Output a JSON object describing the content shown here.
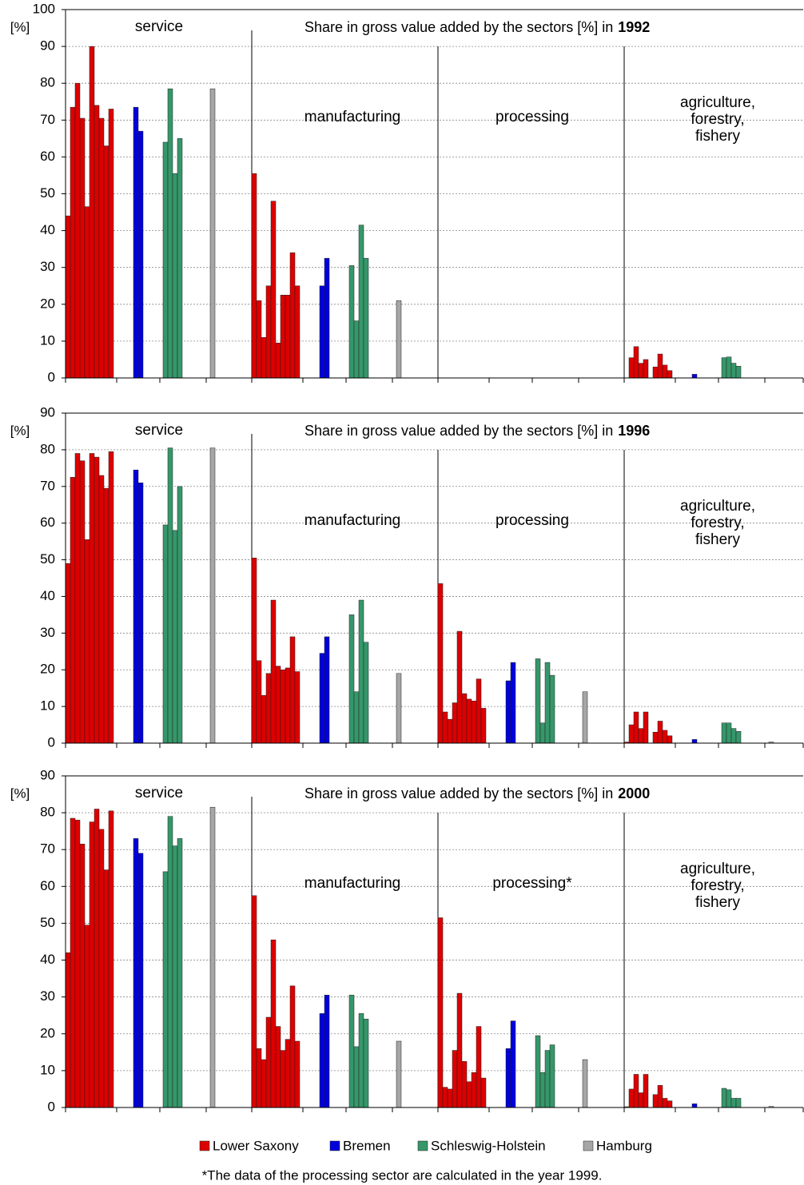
{
  "legend": [
    {
      "name": "Lower Saxony",
      "color": "#dd0000"
    },
    {
      "name": "Bremen",
      "color": "#0000dd"
    },
    {
      "name": "Schleswig-Holstein",
      "color": "#35976a"
    },
    {
      "name": "Hamburg",
      "color": "#a6a6a6"
    }
  ],
  "note": "*The data of the processing sector are calculated in the year 1999.",
  "chart_data": [
    {
      "type": "bar",
      "title": "Share in gross value added by the sectors [%] in",
      "year": "1992",
      "ylabel": "[%]",
      "ylim": [
        0,
        100
      ],
      "yticks": [
        0,
        10,
        20,
        30,
        40,
        50,
        60,
        70,
        80,
        90,
        100
      ],
      "grid": true,
      "sectors": [
        {
          "label": [
            "service"
          ],
          "values": [
            [
              44,
              73.5,
              80,
              70.5,
              46.5,
              90,
              74,
              70.5,
              63,
              73
            ],
            [
              73.5,
              67
            ],
            [
              64,
              78.5,
              55.5,
              65
            ],
            [
              78.5
            ]
          ]
        },
        {
          "label": [
            "manufacturing"
          ],
          "values": [
            [
              55.5,
              21,
              11,
              25,
              48,
              9.5,
              22.5,
              22.5,
              34,
              25
            ],
            [
              25,
              32.5
            ],
            [
              30.5,
              15.5,
              41.5,
              32.5
            ],
            [
              21
            ]
          ]
        },
        {
          "label": [
            "processing"
          ],
          "values": [
            [],
            [],
            [],
            []
          ]
        },
        {
          "label": [
            "agriculture,",
            "forestry,",
            "fishery"
          ],
          "values": [
            [
              null,
              5.5,
              8.5,
              4,
              5,
              null,
              3,
              6.5,
              3.5,
              2
            ],
            [
              1
            ],
            [
              5.5,
              5.7,
              4,
              3.2
            ],
            []
          ]
        }
      ]
    },
    {
      "type": "bar",
      "title": "Share in gross value added by the sectors [%] in",
      "year": "1996",
      "ylabel": "[%]",
      "ylim": [
        0,
        90
      ],
      "yticks": [
        0,
        10,
        20,
        30,
        40,
        50,
        60,
        70,
        80,
        90
      ],
      "grid": true,
      "sectors": [
        {
          "label": [
            "service"
          ],
          "values": [
            [
              49,
              72.5,
              79,
              77,
              55.5,
              79,
              78,
              73,
              69.5,
              79.5
            ],
            [
              74.5,
              71
            ],
            [
              59.5,
              80.5,
              58,
              70
            ],
            [
              80.5
            ]
          ]
        },
        {
          "label": [
            "manufacturing"
          ],
          "values": [
            [
              50.5,
              22.5,
              13,
              19,
              39,
              21,
              20,
              20.5,
              29,
              19.5
            ],
            [
              24.5,
              29
            ],
            [
              35,
              14,
              39,
              27.5
            ],
            [
              19
            ]
          ]
        },
        {
          "label": [
            "processing"
          ],
          "values": [
            [
              43.5,
              8.5,
              6.5,
              11,
              30.5,
              13.5,
              12,
              11.5,
              17.5,
              9.5
            ],
            [
              17,
              22
            ],
            [
              23,
              5.5,
              22,
              18.5
            ],
            [
              14
            ]
          ]
        },
        {
          "label": [
            "agriculture,",
            "forestry,",
            "fishery"
          ],
          "values": [
            [
              0.3,
              5,
              8.5,
              4,
              8.5,
              null,
              3,
              6,
              3.5,
              2
            ],
            [
              1
            ],
            [
              5.5,
              5.5,
              4,
              3.2
            ],
            [
              0.3
            ]
          ]
        }
      ]
    },
    {
      "type": "bar",
      "title": "Share in gross value added by the sectors [%] in",
      "year": "2000",
      "ylabel": "[%]",
      "ylim": [
        0,
        90
      ],
      "yticks": [
        0,
        10,
        20,
        30,
        40,
        50,
        60,
        70,
        80,
        90
      ],
      "grid": true,
      "sectors": [
        {
          "label": [
            "service"
          ],
          "values": [
            [
              42,
              78.5,
              78,
              71.5,
              49.5,
              77.5,
              81,
              75.5,
              64.5,
              80.5
            ],
            [
              73,
              69
            ],
            [
              64,
              79,
              71,
              73
            ],
            [
              81.5
            ]
          ]
        },
        {
          "label": [
            "manufacturing"
          ],
          "values": [
            [
              57.5,
              16,
              13,
              24.5,
              45.5,
              22,
              15.5,
              18.5,
              33,
              18
            ],
            [
              25.5,
              30.5
            ],
            [
              30.5,
              16.5,
              25.5,
              24
            ],
            [
              18
            ]
          ]
        },
        {
          "label": [
            "processing*"
          ],
          "values": [
            [
              51.5,
              5.5,
              5,
              15.5,
              31,
              12.5,
              7,
              9.5,
              22,
              8
            ],
            [
              16,
              23.5
            ],
            [
              19.5,
              9.5,
              15.5,
              17
            ],
            [
              13
            ]
          ]
        },
        {
          "label": [
            "agriculture,",
            "forestry,",
            "fishery"
          ],
          "values": [
            [
              0.2,
              5,
              9,
              4,
              9,
              null,
              3.5,
              6,
              2.5,
              1.8
            ],
            [
              1
            ],
            [
              5.2,
              4.8,
              2.5,
              2.5
            ],
            [
              0.3
            ]
          ]
        }
      ]
    }
  ]
}
